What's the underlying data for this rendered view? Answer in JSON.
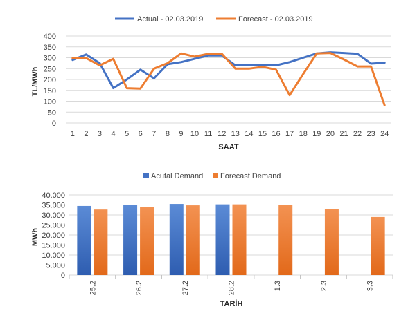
{
  "chart_data": [
    {
      "type": "line",
      "xlabel": "SAAT",
      "ylabel": "TL/MWh",
      "x": [
        "1",
        "2",
        "3",
        "4",
        "5",
        "6",
        "7",
        "8",
        "9",
        "10",
        "11",
        "12",
        "13",
        "14",
        "15",
        "16",
        "17",
        "18",
        "19",
        "20",
        "21",
        "22",
        "23",
        "24"
      ],
      "ylim": [
        0,
        400
      ],
      "yticks": [
        "0",
        "50",
        "100",
        "150",
        "200",
        "250",
        "300",
        "350",
        "400"
      ],
      "grid": true,
      "legend_position": "top",
      "series": [
        {
          "name": "Actual - 02.03.2019",
          "color": "#4472C4",
          "values": [
            290,
            315,
            275,
            160,
            200,
            245,
            205,
            270,
            280,
            295,
            310,
            310,
            265,
            265,
            265,
            265,
            280,
            300,
            320,
            325,
            322,
            318,
            273,
            277
          ]
        },
        {
          "name": "Forecast - 02.03.2019",
          "color": "#ED7D31",
          "values": [
            298,
            298,
            265,
            295,
            160,
            158,
            250,
            275,
            320,
            305,
            318,
            318,
            250,
            250,
            258,
            245,
            128,
            225,
            320,
            322,
            292,
            260,
            260,
            82
          ]
        }
      ]
    },
    {
      "type": "bar",
      "xlabel": "TARİH",
      "ylabel": "MWh",
      "categories": [
        "25.2",
        "26.2",
        "27.2",
        "28.2",
        "1.3",
        "2.3",
        "3.3"
      ],
      "ylim": [
        0,
        40000
      ],
      "yticks": [
        "0",
        "5.000",
        "10.000",
        "15.000",
        "20.000",
        "25.000",
        "30.000",
        "35.000",
        "40.000"
      ],
      "grid": true,
      "legend_position": "top",
      "series": [
        {
          "name": "Acutal Demand",
          "color": "#4472C4",
          "values": [
            34500,
            35000,
            35500,
            35300,
            null,
            null,
            null
          ]
        },
        {
          "name": "Forecast Demand",
          "color": "#ED7D31",
          "values": [
            32700,
            33800,
            34800,
            35300,
            35000,
            33000,
            29000
          ]
        }
      ]
    }
  ]
}
